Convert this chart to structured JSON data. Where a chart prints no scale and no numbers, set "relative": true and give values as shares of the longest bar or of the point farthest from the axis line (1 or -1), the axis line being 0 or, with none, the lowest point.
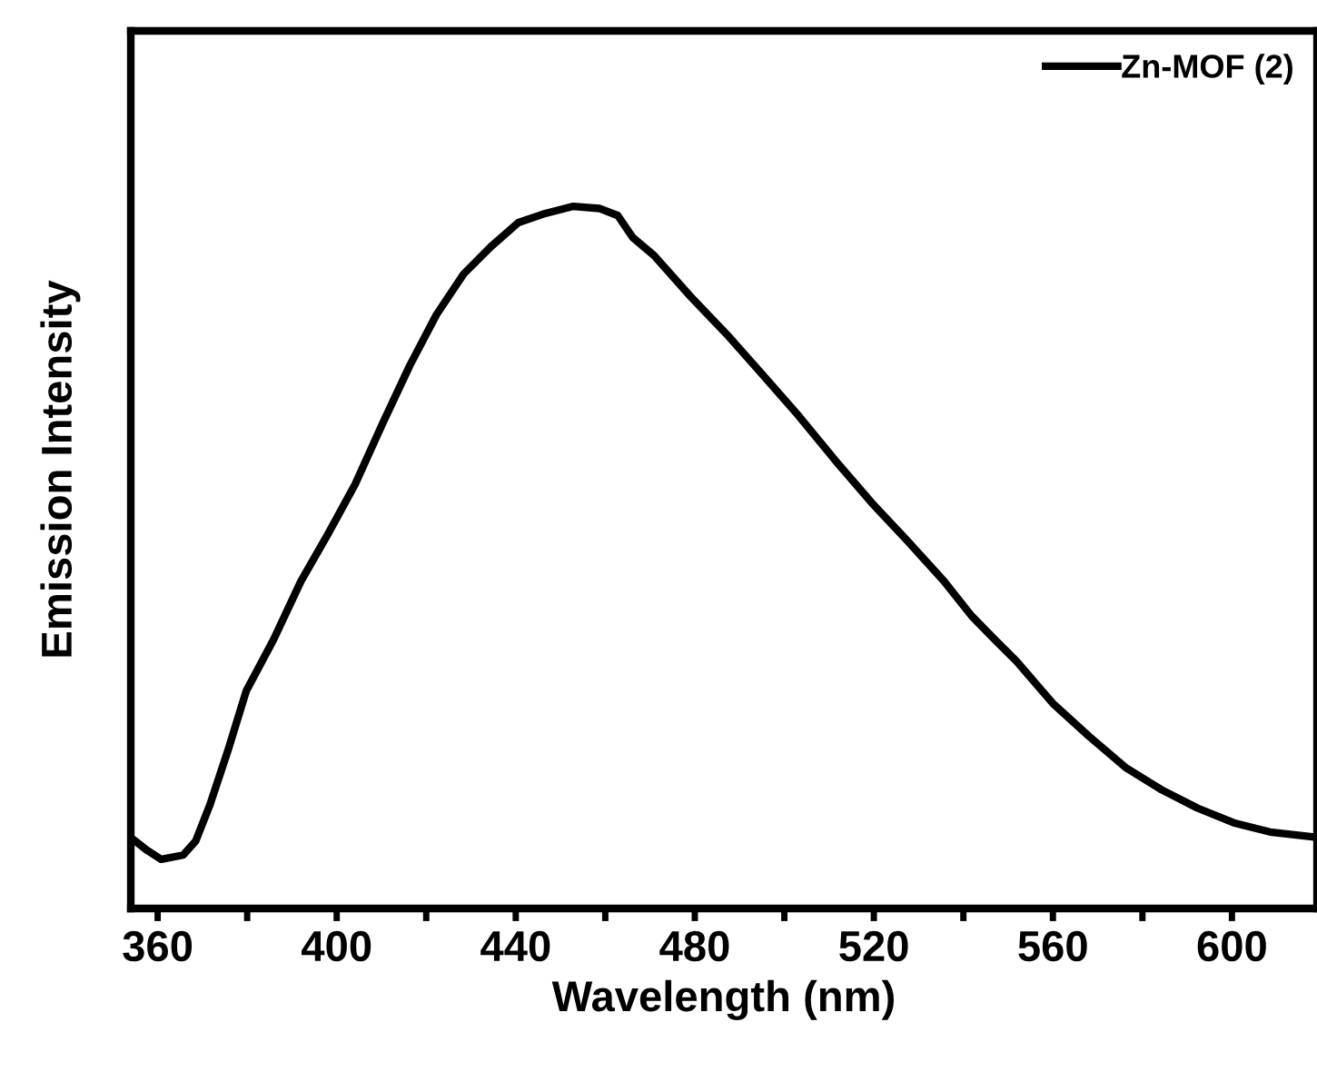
{
  "chart_data": {
    "type": "line",
    "xlabel": "Wavelength (nm)",
    "ylabel": "Emission Intensity",
    "relative": true,
    "tick_labels": "x",
    "legend": "top right",
    "grid": false,
    "xlim": [
      354,
      619
    ],
    "xticks": [
      360,
      {
        "value": 380,
        "label": null
      },
      400,
      {
        "value": 420,
        "label": null
      },
      440,
      {
        "value": 460,
        "label": null
      },
      480,
      {
        "value": 500,
        "label": null
      },
      520,
      {
        "value": 540,
        "label": null
      },
      560,
      {
        "value": 580,
        "label": null
      },
      600
    ],
    "series": [
      {
        "name": "Zn-MOF (2)",
        "color": "#000000",
        "x": [
          355,
          357.6,
          360.8,
          365.7,
          368.5,
          371.7,
          375.8,
          379.8,
          385.9,
          392.0,
          398.1,
          404.1,
          410.2,
          416.3,
          422.3,
          428.4,
          434.5,
          440.6,
          446.6,
          452.7,
          458.8,
          462.8,
          466.1,
          470.9,
          479.0,
          487.1,
          495.2,
          503.3,
          511.4,
          519.5,
          527.6,
          535.7,
          541.8,
          547.0,
          551.9,
          560.0,
          568.1,
          576.2,
          584.3,
          592.3,
          600.4,
          608.5,
          618
        ],
        "values": [
          0.096,
          0.083,
          0.07,
          0.076,
          0.096,
          0.148,
          0.227,
          0.31,
          0.383,
          0.466,
          0.534,
          0.604,
          0.69,
          0.773,
          0.846,
          0.904,
          0.943,
          0.977,
          0.99,
          1.0,
          0.997,
          0.987,
          0.956,
          0.93,
          0.872,
          0.818,
          0.76,
          0.701,
          0.638,
          0.578,
          0.523,
          0.466,
          0.417,
          0.383,
          0.352,
          0.292,
          0.245,
          0.201,
          0.169,
          0.143,
          0.122,
          0.109,
          0.102
        ]
      }
    ]
  }
}
